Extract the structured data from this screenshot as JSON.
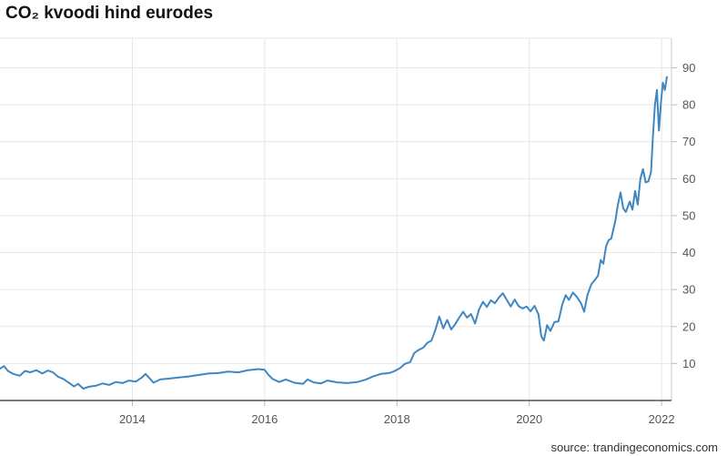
{
  "title": "CO₂ kvoodi hind eurodes",
  "source": "source: trandingeconomics.com",
  "chart_data": {
    "type": "line",
    "title": "CO₂ kvoodi hind eurodes",
    "xlabel": "",
    "ylabel": "",
    "xlim": [
      2012.0,
      2022.15
    ],
    "ylim": [
      0,
      98
    ],
    "x_ticks": [
      2014,
      2016,
      2018,
      2020,
      2022
    ],
    "x_tick_labels": [
      "2014",
      "2016",
      "2018",
      "2020",
      "2022"
    ],
    "y_ticks": [
      10,
      20,
      30,
      40,
      50,
      60,
      70,
      80,
      90
    ],
    "y_tick_labels": [
      "10",
      "20",
      "30",
      "40",
      "50",
      "60",
      "70",
      "80",
      "90"
    ],
    "grid": true,
    "y_axis_side": "right",
    "line_color": "#3f87c2",
    "series": [
      {
        "values": [
          [
            2012.0,
            8.6
          ],
          [
            2012.06,
            9.3
          ],
          [
            2012.12,
            8.0
          ],
          [
            2012.2,
            7.2
          ],
          [
            2012.3,
            6.7
          ],
          [
            2012.38,
            8.0
          ],
          [
            2012.46,
            7.6
          ],
          [
            2012.55,
            8.2
          ],
          [
            2012.64,
            7.3
          ],
          [
            2012.72,
            8.1
          ],
          [
            2012.8,
            7.6
          ],
          [
            2012.88,
            6.4
          ],
          [
            2012.96,
            5.8
          ],
          [
            2013.05,
            4.7
          ],
          [
            2013.12,
            3.8
          ],
          [
            2013.18,
            4.5
          ],
          [
            2013.26,
            3.2
          ],
          [
            2013.34,
            3.7
          ],
          [
            2013.45,
            4.0
          ],
          [
            2013.55,
            4.6
          ],
          [
            2013.65,
            4.2
          ],
          [
            2013.75,
            5.0
          ],
          [
            2013.85,
            4.7
          ],
          [
            2013.95,
            5.4
          ],
          [
            2014.05,
            5.1
          ],
          [
            2014.15,
            6.3
          ],
          [
            2014.2,
            7.2
          ],
          [
            2014.26,
            6.0
          ],
          [
            2014.32,
            4.8
          ],
          [
            2014.42,
            5.7
          ],
          [
            2014.55,
            5.9
          ],
          [
            2014.7,
            6.2
          ],
          [
            2014.85,
            6.5
          ],
          [
            2015.0,
            6.9
          ],
          [
            2015.15,
            7.3
          ],
          [
            2015.3,
            7.4
          ],
          [
            2015.45,
            7.8
          ],
          [
            2015.6,
            7.6
          ],
          [
            2015.75,
            8.2
          ],
          [
            2015.9,
            8.5
          ],
          [
            2016.0,
            8.3
          ],
          [
            2016.05,
            7.1
          ],
          [
            2016.12,
            5.8
          ],
          [
            2016.22,
            5.0
          ],
          [
            2016.32,
            5.7
          ],
          [
            2016.45,
            4.8
          ],
          [
            2016.58,
            4.5
          ],
          [
            2016.65,
            5.7
          ],
          [
            2016.74,
            4.9
          ],
          [
            2016.85,
            4.6
          ],
          [
            2016.95,
            5.4
          ],
          [
            2017.1,
            4.9
          ],
          [
            2017.25,
            4.7
          ],
          [
            2017.4,
            5.0
          ],
          [
            2017.52,
            5.6
          ],
          [
            2017.64,
            6.5
          ],
          [
            2017.76,
            7.2
          ],
          [
            2017.88,
            7.4
          ],
          [
            2017.96,
            7.9
          ],
          [
            2018.05,
            8.8
          ],
          [
            2018.12,
            9.9
          ],
          [
            2018.2,
            10.4
          ],
          [
            2018.26,
            12.8
          ],
          [
            2018.32,
            13.6
          ],
          [
            2018.4,
            14.3
          ],
          [
            2018.46,
            15.6
          ],
          [
            2018.52,
            16.2
          ],
          [
            2018.58,
            19.0
          ],
          [
            2018.64,
            22.7
          ],
          [
            2018.7,
            19.5
          ],
          [
            2018.76,
            21.8
          ],
          [
            2018.82,
            19.2
          ],
          [
            2018.88,
            20.6
          ],
          [
            2018.94,
            22.4
          ],
          [
            2019.0,
            24.0
          ],
          [
            2019.06,
            22.4
          ],
          [
            2019.12,
            23.4
          ],
          [
            2019.18,
            20.8
          ],
          [
            2019.24,
            24.6
          ],
          [
            2019.3,
            26.7
          ],
          [
            2019.36,
            25.3
          ],
          [
            2019.42,
            27.1
          ],
          [
            2019.48,
            26.3
          ],
          [
            2019.54,
            27.8
          ],
          [
            2019.6,
            29.0
          ],
          [
            2019.66,
            27.2
          ],
          [
            2019.72,
            25.4
          ],
          [
            2019.78,
            27.3
          ],
          [
            2019.84,
            25.5
          ],
          [
            2019.9,
            24.9
          ],
          [
            2019.96,
            25.4
          ],
          [
            2020.02,
            24.1
          ],
          [
            2020.08,
            25.6
          ],
          [
            2020.14,
            23.2
          ],
          [
            2020.18,
            17.4
          ],
          [
            2020.22,
            16.2
          ],
          [
            2020.27,
            20.4
          ],
          [
            2020.32,
            18.8
          ],
          [
            2020.38,
            21.2
          ],
          [
            2020.44,
            21.4
          ],
          [
            2020.5,
            26.0
          ],
          [
            2020.55,
            28.5
          ],
          [
            2020.6,
            27.2
          ],
          [
            2020.66,
            29.2
          ],
          [
            2020.72,
            28.0
          ],
          [
            2020.78,
            26.4
          ],
          [
            2020.83,
            24.0
          ],
          [
            2020.88,
            28.6
          ],
          [
            2020.94,
            31.5
          ],
          [
            2021.0,
            32.8
          ],
          [
            2021.04,
            33.8
          ],
          [
            2021.08,
            38.0
          ],
          [
            2021.12,
            37.0
          ],
          [
            2021.16,
            41.6
          ],
          [
            2021.2,
            43.4
          ],
          [
            2021.24,
            43.8
          ],
          [
            2021.3,
            48.5
          ],
          [
            2021.34,
            53.0
          ],
          [
            2021.38,
            56.3
          ],
          [
            2021.42,
            52.0
          ],
          [
            2021.46,
            51.0
          ],
          [
            2021.52,
            53.8
          ],
          [
            2021.56,
            51.6
          ],
          [
            2021.6,
            56.7
          ],
          [
            2021.64,
            53.0
          ],
          [
            2021.68,
            60.0
          ],
          [
            2021.72,
            62.6
          ],
          [
            2021.76,
            59.0
          ],
          [
            2021.8,
            59.3
          ],
          [
            2021.84,
            61.8
          ],
          [
            2021.87,
            71.5
          ],
          [
            2021.9,
            80.0
          ],
          [
            2021.93,
            84.0
          ],
          [
            2021.96,
            73.0
          ],
          [
            2021.99,
            80.5
          ],
          [
            2022.02,
            86.0
          ],
          [
            2022.05,
            84.0
          ],
          [
            2022.08,
            87.5
          ]
        ]
      }
    ]
  }
}
